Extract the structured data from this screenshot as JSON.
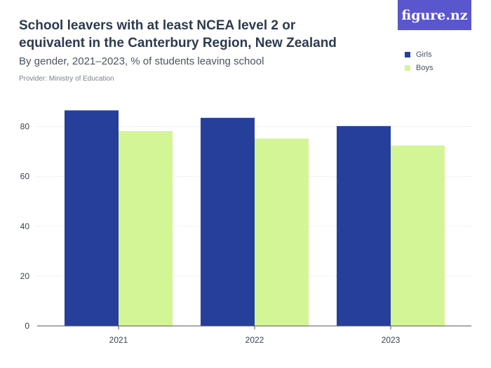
{
  "header": {
    "title": "School leavers with at least NCEA level 2 or equivalent in the Canterbury Region, New Zealand",
    "subtitle": "By gender, 2021–2023, % of students leaving school",
    "provider": "Provider: Ministry of Education",
    "logo_text": "figure.nz"
  },
  "colors": {
    "girls": "#263f9b",
    "boys": "#d4f596",
    "logo_bg": "#5a56cd",
    "grid": "#d9d9d9",
    "axis": "#555555"
  },
  "chart_data": {
    "type": "bar",
    "title": "School leavers with at least NCEA level 2 or equivalent in the Canterbury Region, New Zealand",
    "subtitle": "By gender, 2021–2023, % of students leaving school",
    "categories": [
      "2021",
      "2022",
      "2023"
    ],
    "series": [
      {
        "name": "Girls",
        "values": [
          86.5,
          83.5,
          80.2
        ]
      },
      {
        "name": "Boys",
        "values": [
          78.2,
          75.2,
          72.4
        ]
      }
    ],
    "yticks": [
      "0",
      "20",
      "40",
      "60",
      "80"
    ],
    "ylim": [
      0,
      90
    ],
    "xlabel": "",
    "ylabel": "",
    "grid": true,
    "legend": "top-right"
  }
}
